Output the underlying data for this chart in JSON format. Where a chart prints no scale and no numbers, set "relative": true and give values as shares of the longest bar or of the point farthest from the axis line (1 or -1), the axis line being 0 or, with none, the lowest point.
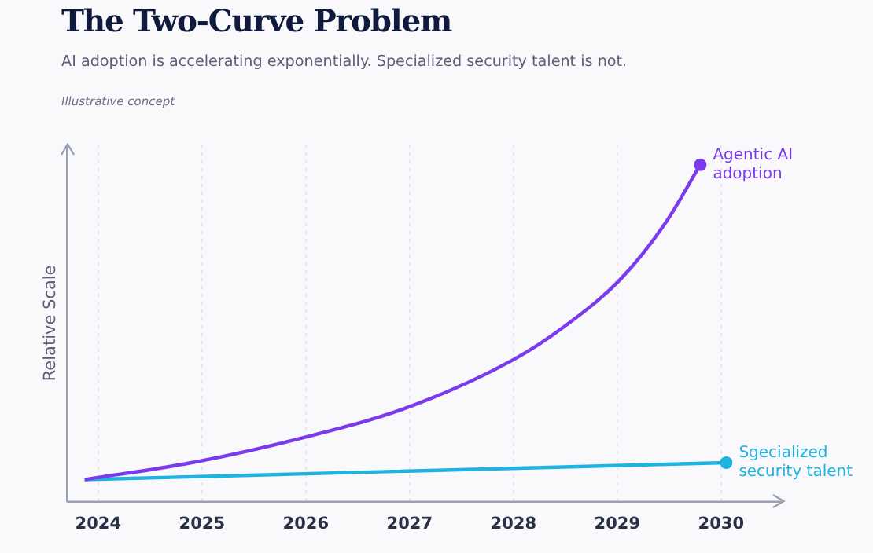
{
  "chart_data": {
    "type": "line",
    "title": "The Two-Curve Problem",
    "subtitle": "AI adoption is accelerating exponentially. Specialized security talent is not.",
    "annotations": [
      "Illustrative concept"
    ],
    "ylabel": "Relative Scale",
    "relative": true,
    "xlim": [
      2023.7,
      2030.6
    ],
    "xticks": [
      2024,
      2025,
      2026,
      2027,
      2028,
      2029,
      2030
    ],
    "grid": "x",
    "legend": false,
    "series": [
      {
        "name": "Agentic AI adoption",
        "color": "#7c3aed",
        "x": [
          2023.87,
          2024.9,
          2025.97,
          2026.98,
          2027.99,
          2028.49,
          2029.03,
          2029.47,
          2029.8
        ],
        "values": [
          0.066,
          0.116,
          0.19,
          0.28,
          0.42,
          0.52,
          0.66,
          0.83,
          1.0
        ]
      },
      {
        "name": "Sgecialized security talent",
        "color": "#1fb3e0",
        "x": [
          2023.87,
          2030.05
        ],
        "values": [
          0.066,
          0.116
        ]
      }
    ]
  }
}
